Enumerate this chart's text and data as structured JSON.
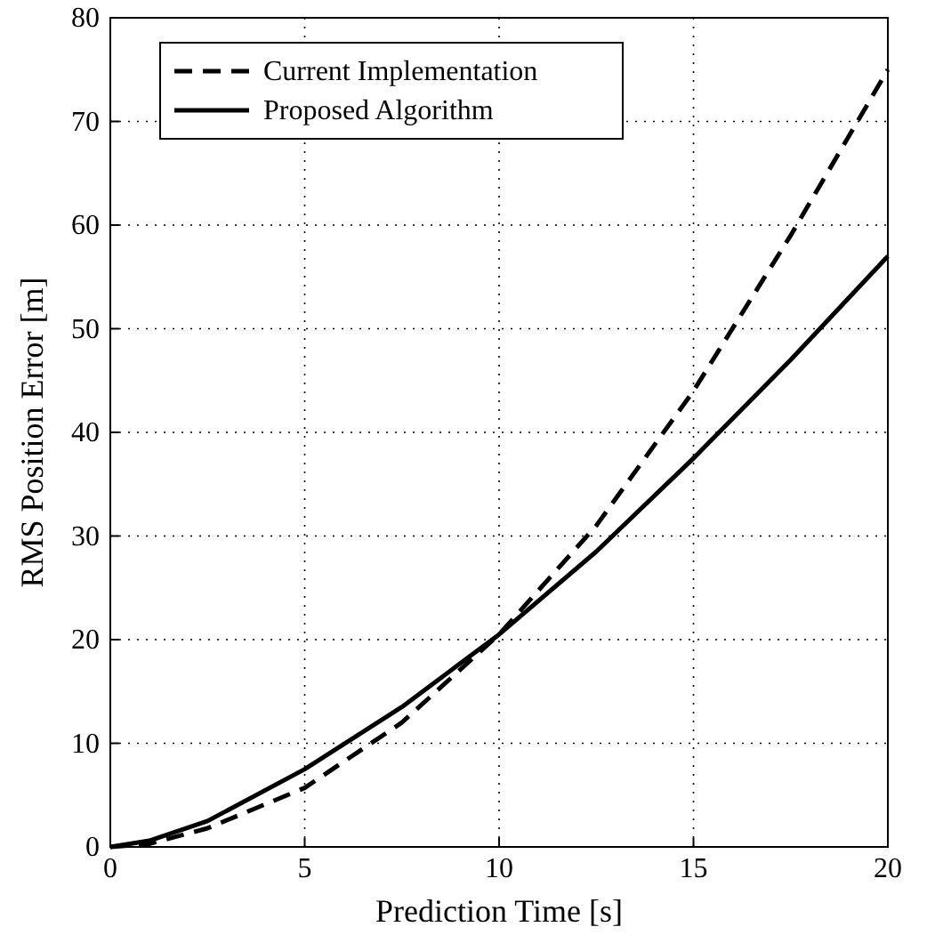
{
  "chart_data": {
    "type": "line",
    "xlabel": "Prediction Time [s]",
    "ylabel": "RMS Position Error [m]",
    "x": [
      0,
      1,
      2.5,
      5,
      7.5,
      10,
      12.5,
      15,
      17.5,
      20
    ],
    "series": [
      {
        "name": "Current Implementation",
        "color": "#000000",
        "line_style": "dashed",
        "values": [
          0,
          0.3,
          1.8,
          5.7,
          12,
          20.5,
          31,
          44,
          59,
          75
        ]
      },
      {
        "name": "Proposed Algorithm",
        "color": "#000000",
        "line_style": "solid",
        "values": [
          0,
          0.6,
          2.5,
          7.5,
          13.5,
          20.5,
          28.5,
          37.5,
          47,
          57
        ]
      }
    ],
    "xlim": [
      0,
      20
    ],
    "ylim": [
      0,
      80
    ],
    "xticks": [
      0,
      5,
      10,
      15,
      20
    ],
    "yticks": [
      0,
      10,
      20,
      30,
      40,
      50,
      60,
      70,
      80
    ],
    "grid": true,
    "legend": "top left",
    "marker": "none"
  }
}
